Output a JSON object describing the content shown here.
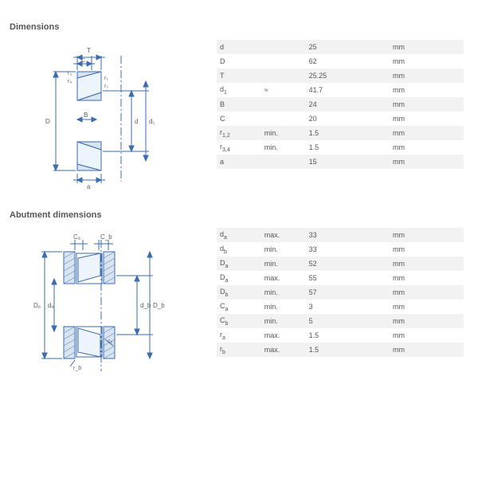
{
  "sections": {
    "dimensions": {
      "title": "Dimensions",
      "rows": [
        {
          "sym": "d",
          "sub": "",
          "qual": "",
          "val": "25",
          "unit": "mm"
        },
        {
          "sym": "D",
          "sub": "",
          "qual": "",
          "val": "62",
          "unit": "mm"
        },
        {
          "sym": "T",
          "sub": "",
          "qual": "",
          "val": "25.25",
          "unit": "mm"
        },
        {
          "sym": "d",
          "sub": "1",
          "qual": "≈",
          "val": "41.7",
          "unit": "mm"
        },
        {
          "sym": "B",
          "sub": "",
          "qual": "",
          "val": "24",
          "unit": "mm"
        },
        {
          "sym": "C",
          "sub": "",
          "qual": "",
          "val": "20",
          "unit": "mm"
        },
        {
          "sym": "r",
          "sub": "1,2",
          "qual": "min.",
          "val": "1.5",
          "unit": "mm"
        },
        {
          "sym": "r",
          "sub": "3,4",
          "qual": "min.",
          "val": "1.5",
          "unit": "mm"
        },
        {
          "sym": "a",
          "sub": "",
          "qual": "",
          "val": "15",
          "unit": "mm"
        }
      ]
    },
    "abutment": {
      "title": "Abutment dimensions",
      "rows": [
        {
          "sym": "d",
          "sub": "a",
          "qual": "max.",
          "val": "33",
          "unit": "mm"
        },
        {
          "sym": "d",
          "sub": "b",
          "qual": "min.",
          "val": "33",
          "unit": "mm"
        },
        {
          "sym": "D",
          "sub": "a",
          "qual": "min.",
          "val": "52",
          "unit": "mm"
        },
        {
          "sym": "D",
          "sub": "a",
          "qual": "max.",
          "val": "55",
          "unit": "mm"
        },
        {
          "sym": "D",
          "sub": "b",
          "qual": "min.",
          "val": "57",
          "unit": "mm"
        },
        {
          "sym": "C",
          "sub": "a",
          "qual": "min.",
          "val": "3",
          "unit": "mm"
        },
        {
          "sym": "C",
          "sub": "b",
          "qual": "min.",
          "val": "5",
          "unit": "mm"
        },
        {
          "sym": "r",
          "sub": "a",
          "qual": "max.",
          "val": "1.5",
          "unit": "mm"
        },
        {
          "sym": "r",
          "sub": "b",
          "qual": "max.",
          "val": "1.5",
          "unit": "mm"
        }
      ]
    }
  },
  "style": {
    "row_bg_alt": "#f2f2f2",
    "text_color": "#555555",
    "diagram_stroke": "#3b6db0",
    "diagram_fill": "#d9e4f1",
    "centerline_color": "#3b6db0",
    "label_color": "#606060",
    "fontsize_title": 11,
    "fontsize_cell": 9
  }
}
